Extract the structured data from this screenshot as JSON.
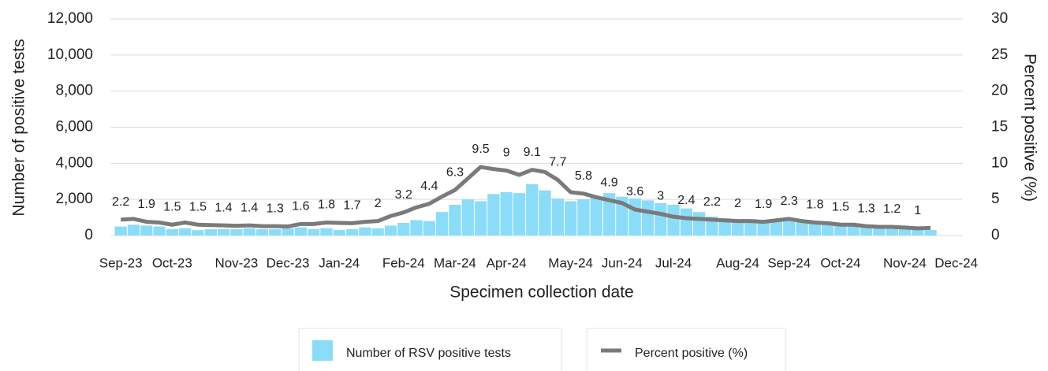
{
  "chart_data": {
    "type": "bar",
    "xlabel": "Specimen collection date",
    "ylabel": "Number of positive tests",
    "y2label": "Percent positive (%)",
    "categories": [
      "Sep-23",
      null,
      null,
      null,
      "Oct-23",
      null,
      null,
      null,
      null,
      "Nov-23",
      null,
      null,
      null,
      "Dec-23",
      null,
      null,
      null,
      "Jan-24",
      null,
      null,
      null,
      null,
      "Feb-24",
      null,
      null,
      null,
      "Mar-24",
      null,
      null,
      null,
      "Apr-24",
      null,
      null,
      null,
      null,
      "May-24",
      null,
      null,
      null,
      "Jun-24",
      null,
      null,
      null,
      "Jul-24",
      null,
      null,
      null,
      null,
      "Aug-24",
      null,
      null,
      null,
      "Sep-24",
      null,
      null,
      null,
      "Oct-24",
      null,
      null,
      null,
      null,
      "Nov-24",
      null,
      null,
      null,
      "Dec-24"
    ],
    "series": [
      {
        "name": "Number of RSV positive tests",
        "type": "bar",
        "color": "#8adcf8",
        "values": [
          500,
          600,
          550,
          500,
          350,
          400,
          300,
          350,
          350,
          350,
          400,
          350,
          350,
          400,
          450,
          350,
          400,
          300,
          350,
          450,
          400,
          550,
          700,
          850,
          800,
          1300,
          1700,
          2000,
          1900,
          2300,
          2400,
          2350,
          2850,
          2500,
          2050,
          1900,
          2000,
          2100,
          2350,
          2150,
          2050,
          1950,
          1800,
          1700,
          1500,
          1300,
          1050,
          950,
          900,
          900,
          850,
          800,
          850,
          750,
          700,
          650,
          600,
          550,
          500,
          450,
          400,
          400,
          350,
          300,
          null,
          null
        ]
      },
      {
        "name": "Percent positive (%)",
        "type": "line",
        "color": "#7a7a7a",
        "axis": "y2",
        "values": [
          2.2,
          2.3,
          1.9,
          1.8,
          1.5,
          1.8,
          1.5,
          1.45,
          1.4,
          1.35,
          1.4,
          1.3,
          1.3,
          1.25,
          1.6,
          1.6,
          1.8,
          1.75,
          1.7,
          1.9,
          2,
          2.7,
          3.2,
          3.9,
          4.4,
          5.4,
          6.3,
          7.9,
          9.5,
          9.2,
          9,
          8.4,
          9.1,
          8.8,
          7.7,
          6,
          5.8,
          5.3,
          4.9,
          4.5,
          3.6,
          3.3,
          3,
          2.6,
          2.4,
          2.3,
          2.2,
          2.1,
          2,
          2,
          1.9,
          2.1,
          2.3,
          2,
          1.8,
          1.7,
          1.5,
          1.5,
          1.3,
          1.2,
          1.2,
          1.1,
          1,
          1.05,
          null,
          null
        ]
      }
    ],
    "ylim": [
      0,
      12000
    ],
    "yticks": [
      0,
      {
        "value": 2000,
        "label": "2,000"
      },
      {
        "value": 4000,
        "label": "4,000"
      },
      {
        "value": 6000,
        "label": "6,000"
      },
      {
        "value": 8000,
        "label": "8,000"
      },
      {
        "value": 10000,
        "label": "10,000"
      },
      {
        "value": 12000,
        "label": "12,000"
      }
    ],
    "y2lim": [
      0,
      30
    ],
    "y2ticks": [
      0,
      5,
      10,
      15,
      20,
      25,
      30
    ],
    "grid": true
  }
}
